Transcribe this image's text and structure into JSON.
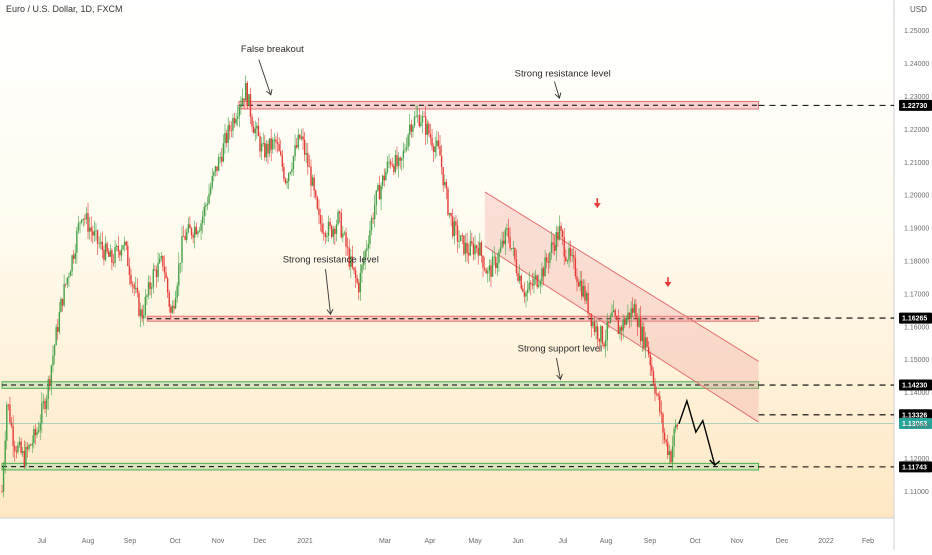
{
  "chart_data": {
    "type": "candlestick",
    "title": "Euro / U.S. Dollar, 1D, FXCM",
    "currency": "USD",
    "ylim": [
      1.1025,
      1.2575
    ],
    "y_ticks": [
      "1.25000",
      "1.24000",
      "1.23000",
      "1.22000",
      "1.21000",
      "1.20000",
      "1.19000",
      "1.18000",
      "1.17000",
      "1.16000",
      "1.15000",
      "1.14000",
      "1.13000",
      "1.12000",
      "1.11000"
    ],
    "x_ticks": [
      "Jul",
      "Aug",
      "Sep",
      "Oct",
      "Nov",
      "Dec",
      "2021",
      "Mar",
      "Apr",
      "May",
      "Jun",
      "Jul",
      "Aug",
      "Sep",
      "Oct",
      "Nov",
      "Dec",
      "2022",
      "Feb"
    ],
    "grid": false,
    "levels": [
      {
        "price": 1.2273,
        "label": "1.22730",
        "color": "#000000",
        "text_color": "#ffffff"
      },
      {
        "price": 1.16265,
        "label": "1.16265",
        "color": "#000000",
        "text_color": "#ffffff"
      },
      {
        "price": 1.1423,
        "label": "1.14230",
        "color": "#000000",
        "text_color": "#ffffff"
      },
      {
        "price": 1.13326,
        "label": "1.13326",
        "color": "#000000",
        "text_color": "#ffffff"
      },
      {
        "price": 1.13063,
        "label": "1.13063",
        "color": "#26a69a",
        "text_color": "#ffffff"
      },
      {
        "price": 1.11743,
        "label": "1.11743",
        "color": "#000000",
        "text_color": "#ffffff"
      }
    ],
    "key_prices": [
      {
        "x": 0,
        "y": 1.11
      },
      {
        "x": 5,
        "y": 1.138
      },
      {
        "x": 12,
        "y": 1.125
      },
      {
        "x": 22,
        "y": 1.12
      },
      {
        "x": 35,
        "y": 1.128
      },
      {
        "x": 45,
        "y": 1.14
      },
      {
        "x": 60,
        "y": 1.168
      },
      {
        "x": 72,
        "y": 1.183
      },
      {
        "x": 80,
        "y": 1.195
      },
      {
        "x": 95,
        "y": 1.186
      },
      {
        "x": 110,
        "y": 1.18
      },
      {
        "x": 122,
        "y": 1.186
      },
      {
        "x": 134,
        "y": 1.17
      },
      {
        "x": 140,
        "y": 1.163
      },
      {
        "x": 152,
        "y": 1.176
      },
      {
        "x": 162,
        "y": 1.18
      },
      {
        "x": 170,
        "y": 1.163
      },
      {
        "x": 182,
        "y": 1.187
      },
      {
        "x": 200,
        "y": 1.192
      },
      {
        "x": 212,
        "y": 1.205
      },
      {
        "x": 225,
        "y": 1.217
      },
      {
        "x": 238,
        "y": 1.228
      },
      {
        "x": 245,
        "y": 1.232
      },
      {
        "x": 252,
        "y": 1.222
      },
      {
        "x": 262,
        "y": 1.213
      },
      {
        "x": 275,
        "y": 1.216
      },
      {
        "x": 285,
        "y": 1.205
      },
      {
        "x": 300,
        "y": 1.218
      },
      {
        "x": 310,
        "y": 1.206
      },
      {
        "x": 318,
        "y": 1.192
      },
      {
        "x": 330,
        "y": 1.189
      },
      {
        "x": 338,
        "y": 1.193
      },
      {
        "x": 345,
        "y": 1.185
      },
      {
        "x": 352,
        "y": 1.177
      },
      {
        "x": 358,
        "y": 1.172
      },
      {
        "x": 365,
        "y": 1.183
      },
      {
        "x": 375,
        "y": 1.198
      },
      {
        "x": 390,
        "y": 1.211
      },
      {
        "x": 400,
        "y": 1.208
      },
      {
        "x": 410,
        "y": 1.222
      },
      {
        "x": 420,
        "y": 1.224
      },
      {
        "x": 432,
        "y": 1.217
      },
      {
        "x": 440,
        "y": 1.212
      },
      {
        "x": 447,
        "y": 1.198
      },
      {
        "x": 453,
        "y": 1.19
      },
      {
        "x": 460,
        "y": 1.186
      },
      {
        "x": 468,
        "y": 1.183
      },
      {
        "x": 478,
        "y": 1.185
      },
      {
        "x": 488,
        "y": 1.176
      },
      {
        "x": 498,
        "y": 1.181
      },
      {
        "x": 508,
        "y": 1.189
      },
      {
        "x": 516,
        "y": 1.179
      },
      {
        "x": 526,
        "y": 1.17
      },
      {
        "x": 536,
        "y": 1.174
      },
      {
        "x": 545,
        "y": 1.178
      },
      {
        "x": 552,
        "y": 1.184
      },
      {
        "x": 560,
        "y": 1.189
      },
      {
        "x": 566,
        "y": 1.183
      },
      {
        "x": 575,
        "y": 1.178
      },
      {
        "x": 585,
        "y": 1.17
      },
      {
        "x": 595,
        "y": 1.16
      },
      {
        "x": 605,
        "y": 1.156
      },
      {
        "x": 613,
        "y": 1.163
      },
      {
        "x": 620,
        "y": 1.159
      },
      {
        "x": 628,
        "y": 1.163
      },
      {
        "x": 636,
        "y": 1.166
      },
      {
        "x": 642,
        "y": 1.158
      },
      {
        "x": 648,
        "y": 1.155
      },
      {
        "x": 654,
        "y": 1.145
      },
      {
        "x": 660,
        "y": 1.136
      },
      {
        "x": 666,
        "y": 1.125
      },
      {
        "x": 672,
        "y": 1.121
      },
      {
        "x": 676,
        "y": 1.129
      },
      {
        "x": 680,
        "y": 1.131
      }
    ],
    "projection": [
      {
        "x": 680,
        "y": 1.1305
      },
      {
        "x": 688,
        "y": 1.1375
      },
      {
        "x": 697,
        "y": 1.128
      },
      {
        "x": 704,
        "y": 1.1315
      },
      {
        "x": 716,
        "y": 1.118
      }
    ],
    "zones": [
      {
        "name": "resistance-zone-top",
        "y_top": 1.2285,
        "y_bottom": 1.2262,
        "x_start": 238,
        "x_end": 760,
        "color": "#ef9a9a"
      },
      {
        "name": "resistance-zone-mid",
        "y_top": 1.1632,
        "y_bottom": 1.1617,
        "x_start": 146,
        "x_end": 760,
        "color": "#ef9a9a"
      },
      {
        "name": "support-zone-mid",
        "y_top": 1.1433,
        "y_bottom": 1.1413,
        "x_start": 0,
        "x_end": 760,
        "color": "#a5d6a7"
      },
      {
        "name": "support-zone-bottom",
        "y_top": 1.1185,
        "y_bottom": 1.1165,
        "x_start": 0,
        "x_end": 760,
        "color": "#a5d6a7"
      }
    ],
    "channel": {
      "upper": [
        {
          "x": 485,
          "y": 1.201
        },
        {
          "x": 760,
          "y": 1.1495
        }
      ],
      "lower": [
        {
          "x": 485,
          "y": 1.1845
        },
        {
          "x": 760,
          "y": 1.131
        }
      ]
    },
    "annotations": [
      {
        "text": "False breakout",
        "x": 240,
        "y": 1.2435
      },
      {
        "text": "Strong resistance level",
        "x": 515,
        "y": 1.236
      },
      {
        "text": "Strong resistance level",
        "x": 282,
        "y": 1.1795
      },
      {
        "text": "Strong support level",
        "x": 518,
        "y": 1.1525
      }
    ],
    "down_arrows": [
      {
        "x": 598,
        "y": 1.197
      },
      {
        "x": 669,
        "y": 1.173
      }
    ]
  },
  "header": {
    "title": "Euro / U.S. Dollar, 1D, FXCM",
    "currency": "USD"
  }
}
